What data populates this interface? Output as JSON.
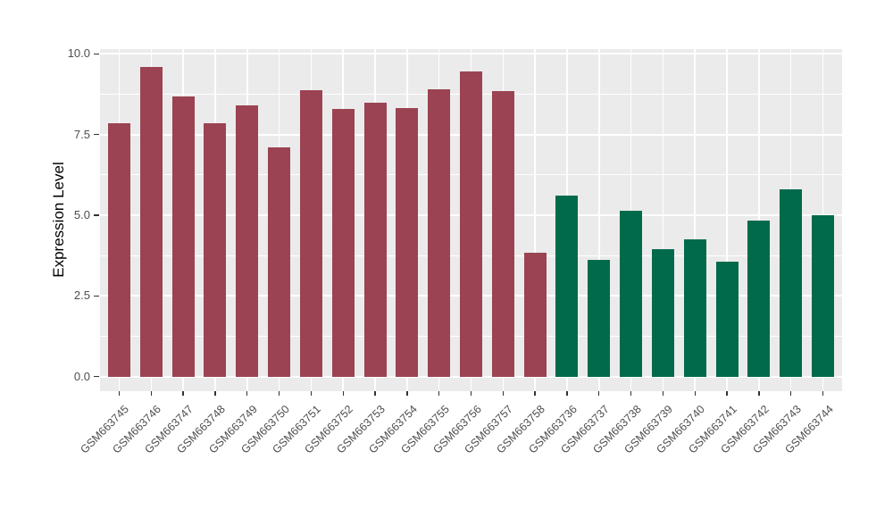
{
  "chart_data": {
    "type": "bar",
    "title": "",
    "xlabel": "",
    "ylabel": "Expression Level",
    "categories": [
      "GSM663745",
      "GSM663746",
      "GSM663747",
      "GSM663748",
      "GSM663749",
      "GSM663750",
      "GSM663751",
      "GSM663752",
      "GSM663753",
      "GSM663754",
      "GSM663755",
      "GSM663756",
      "GSM663757",
      "GSM663758",
      "GSM663736",
      "GSM663737",
      "GSM663738",
      "GSM663739",
      "GSM663740",
      "GSM663741",
      "GSM663742",
      "GSM663743",
      "GSM663744"
    ],
    "values": [
      7.85,
      9.6,
      8.68,
      7.85,
      8.42,
      7.1,
      8.87,
      8.3,
      8.5,
      8.32,
      8.9,
      9.47,
      8.85,
      3.84,
      5.6,
      3.62,
      5.15,
      3.94,
      4.26,
      3.56,
      4.84,
      5.8,
      4.99
    ],
    "group_index": [
      0,
      0,
      0,
      0,
      0,
      0,
      0,
      0,
      0,
      0,
      0,
      0,
      0,
      0,
      1,
      1,
      1,
      1,
      1,
      1,
      1,
      1,
      1
    ],
    "group_colors": [
      "#9B4352",
      "#016A4B"
    ],
    "yticks": {
      "labels": [
        "0.0",
        "2.5",
        "5.0",
        "7.5",
        "10.0"
      ],
      "values": [
        0,
        2.5,
        5,
        7.5,
        10
      ]
    },
    "ylim": [
      -0.45,
      10.15
    ],
    "grid": true,
    "legend_position": "none",
    "panel_background": "#EBEBEB",
    "gridline_color": "#FFFFFF",
    "axis_text_color": "#4D4D4D",
    "axis_title_color": "#000000"
  }
}
